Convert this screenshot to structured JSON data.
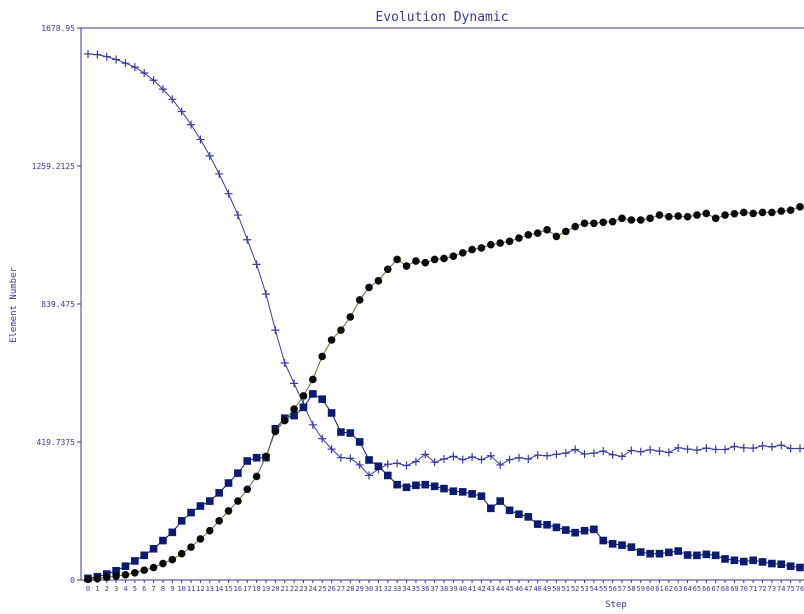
{
  "chart_data": {
    "type": "line",
    "title": "Evolution Dynamic",
    "xlabel": "Step",
    "ylabel": "Element Number",
    "ylim": [
      0,
      1678.95
    ],
    "xlim": [
      0,
      76
    ],
    "yticks": [
      "0",
      "419.7375",
      "839.475",
      "1259.2125",
      "1678.95"
    ],
    "ytick_values": [
      0,
      419.7375,
      839.475,
      1259.2125,
      1678.95
    ],
    "grid": false,
    "legend": "none",
    "colors": {
      "axis": "#3a3a8c",
      "plus_series": "#3b3ba0",
      "square_series": "#0b1b6e",
      "circle_series": "#0a0a0a",
      "circle_line": "#6b6b3a"
    },
    "x": [
      0,
      1,
      2,
      3,
      4,
      5,
      6,
      7,
      8,
      9,
      10,
      11,
      12,
      13,
      14,
      15,
      16,
      17,
      18,
      19,
      20,
      21,
      22,
      23,
      24,
      25,
      26,
      27,
      28,
      29,
      30,
      31,
      32,
      33,
      34,
      35,
      36,
      37,
      38,
      39,
      40,
      41,
      42,
      43,
      44,
      45,
      46,
      47,
      48,
      49,
      50,
      51,
      52,
      53,
      54,
      55,
      56,
      57,
      58,
      59,
      60,
      61,
      62,
      63,
      64,
      65,
      66,
      67,
      68,
      69,
      70,
      71,
      72,
      73,
      74,
      75,
      76
    ],
    "series": [
      {
        "marker": "plus",
        "values": [
          1600,
          1598,
          1592,
          1583,
          1572,
          1560,
          1542,
          1520,
          1493,
          1462,
          1425,
          1385,
          1340,
          1290,
          1235,
          1175,
          1110,
          1035,
          960,
          870,
          760,
          660,
          598,
          535,
          472,
          430,
          398,
          372,
          370,
          350,
          318,
          337,
          352,
          355,
          348,
          360,
          382,
          358,
          368,
          376,
          366,
          374,
          366,
          378,
          350,
          366,
          372,
          368,
          380,
          378,
          382,
          386,
          397,
          383,
          386,
          392,
          381,
          376,
          394,
          390,
          396,
          392,
          388,
          402,
          398,
          395,
          401,
          397,
          397,
          406,
          402,
          401,
          408,
          405,
          410,
          400,
          400
        ]
      },
      {
        "marker": "square",
        "values": [
          5,
          10,
          18,
          28,
          42,
          58,
          75,
          95,
          120,
          145,
          180,
          205,
          225,
          240,
          265,
          295,
          325,
          362,
          372,
          372,
          460,
          492,
          500,
          525,
          566,
          550,
          508,
          450,
          447,
          420,
          365,
          346,
          318,
          290,
          282,
          288,
          290,
          285,
          278,
          270,
          268,
          262,
          255,
          218,
          240,
          212,
          200,
          192,
          170,
          168,
          160,
          152,
          144,
          150,
          154,
          120,
          110,
          106,
          100,
          85,
          80,
          80,
          84,
          88,
          76,
          75,
          78,
          75,
          64,
          60,
          56,
          60,
          55,
          50,
          48,
          42,
          38
        ]
      },
      {
        "marker": "circle",
        "values": [
          2,
          4,
          8,
          12,
          16,
          22,
          30,
          38,
          50,
          62,
          80,
          100,
          125,
          150,
          180,
          210,
          240,
          276,
          315,
          376,
          452,
          485,
          520,
          560,
          610,
          680,
          730,
          760,
          800,
          852,
          890,
          910,
          945,
          975,
          955,
          970,
          965,
          975,
          978,
          985,
          995,
          1005,
          1010,
          1020,
          1025,
          1030,
          1040,
          1050,
          1055,
          1065,
          1045,
          1060,
          1075,
          1085,
          1085,
          1088,
          1090,
          1100,
          1095,
          1095,
          1100,
          1110,
          1105,
          1107,
          1105,
          1110,
          1115,
          1100,
          1110,
          1114,
          1118,
          1115,
          1118,
          1118,
          1122,
          1125,
          1135
        ]
      }
    ]
  }
}
